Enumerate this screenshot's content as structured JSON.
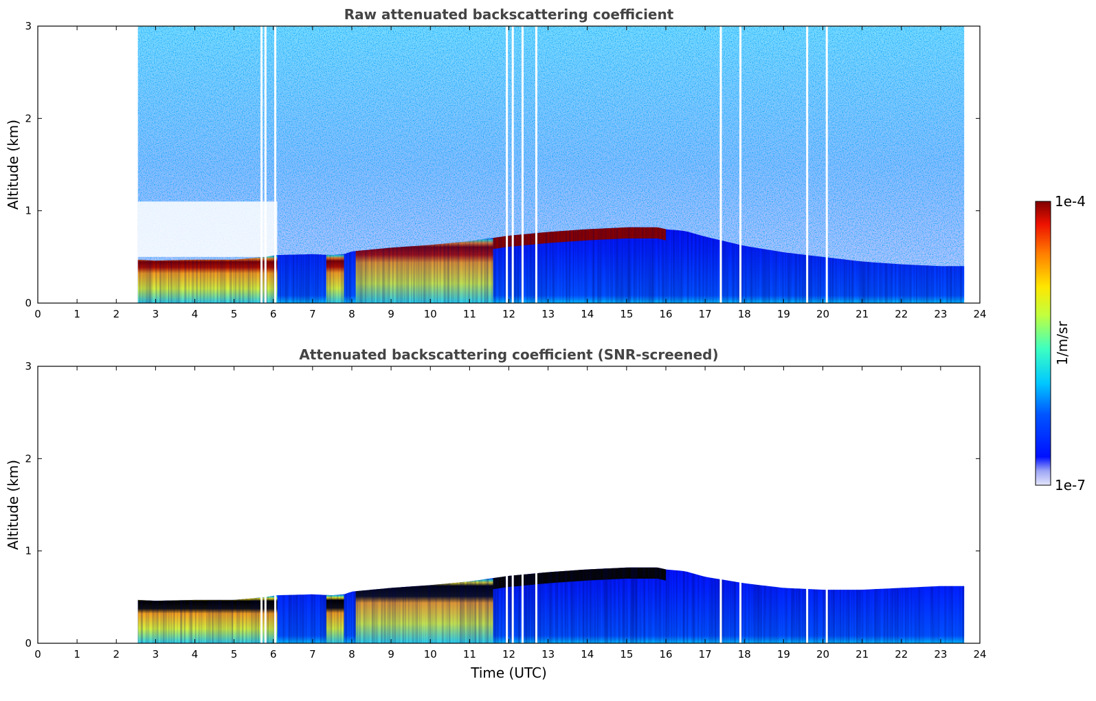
{
  "chart_data": [
    {
      "type": "heatmap",
      "title": "Raw attenuated backscattering coefficient",
      "xlabel": "",
      "ylabel": "Altitude (km)",
      "xlim": [
        0,
        24
      ],
      "ylim": [
        0,
        3
      ],
      "xticks": [
        0,
        1,
        2,
        3,
        4,
        5,
        6,
        7,
        8,
        9,
        10,
        11,
        12,
        13,
        14,
        15,
        16,
        17,
        18,
        19,
        20,
        21,
        22,
        23,
        24
      ],
      "yticks": [
        0,
        1,
        2,
        3
      ],
      "data_time_range_utc": [
        2.55,
        23.6
      ],
      "noise_upper_atmosphere": true,
      "gaps_utc": [
        5.7,
        5.8,
        6.05,
        11.95,
        12.1,
        12.35,
        12.7,
        17.4,
        17.9,
        19.6,
        20.1
      ],
      "layer_top_km": {
        "x": [
          2.55,
          3,
          4,
          5,
          5.8,
          6.1,
          7,
          7.5,
          7.8,
          8,
          9,
          10,
          11,
          11.5,
          12,
          13,
          14,
          15,
          15.8,
          16,
          16.5,
          17,
          18,
          19,
          20,
          21,
          22,
          23,
          23.6
        ],
        "y": [
          0.47,
          0.46,
          0.47,
          0.47,
          0.5,
          0.52,
          0.53,
          0.52,
          0.53,
          0.56,
          0.6,
          0.63,
          0.67,
          0.7,
          0.73,
          0.77,
          0.8,
          0.82,
          0.82,
          0.8,
          0.78,
          0.72,
          0.62,
          0.55,
          0.5,
          0.45,
          0.42,
          0.4,
          0.4
        ]
      }
    },
    {
      "type": "heatmap",
      "title": "Attenuated backscattering coefficient (SNR-screened)",
      "xlabel": "Time (UTC)",
      "ylabel": "Altitude (km)",
      "xlim": [
        0,
        24
      ],
      "ylim": [
        0,
        3
      ],
      "xticks": [
        0,
        1,
        2,
        3,
        4,
        5,
        6,
        7,
        8,
        9,
        10,
        11,
        12,
        13,
        14,
        15,
        16,
        17,
        18,
        19,
        20,
        21,
        22,
        23,
        24
      ],
      "yticks": [
        0,
        1,
        2,
        3
      ],
      "data_time_range_utc": [
        2.55,
        23.6
      ],
      "noise_upper_atmosphere": false,
      "saturated_values_color": "#000000",
      "gaps_utc": [
        5.7,
        5.8,
        6.05,
        11.95,
        12.1,
        12.35,
        12.7,
        17.4,
        17.9,
        19.6,
        20.1
      ],
      "layer_top_km": {
        "x": [
          2.55,
          3,
          4,
          5,
          5.8,
          6.1,
          7,
          7.5,
          7.8,
          8,
          9,
          10,
          11,
          11.5,
          12,
          13,
          14,
          15,
          15.8,
          16,
          16.5,
          17,
          18,
          19,
          20,
          21,
          22,
          23,
          23.6
        ],
        "y": [
          0.47,
          0.46,
          0.47,
          0.47,
          0.5,
          0.52,
          0.53,
          0.52,
          0.53,
          0.56,
          0.6,
          0.63,
          0.67,
          0.7,
          0.73,
          0.77,
          0.8,
          0.82,
          0.82,
          0.8,
          0.78,
          0.72,
          0.65,
          0.6,
          0.58,
          0.58,
          0.6,
          0.62,
          0.62
        ]
      }
    }
  ],
  "colorbar": {
    "label": "1/m/sr",
    "min_label": "1e-7",
    "max_label": "1e-4",
    "scale": "log",
    "colormap": "jet",
    "range": [
      1e-07,
      0.0001
    ]
  }
}
